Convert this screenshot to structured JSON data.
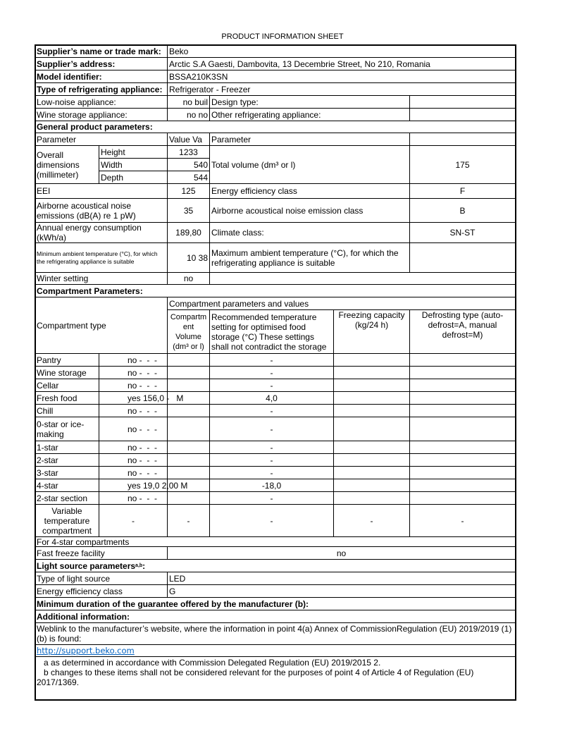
{
  "title": "PRODUCT INFORMATION SHEET",
  "supplier": {
    "label": "Supplier’s name or trade mark:",
    "value": "Beko"
  },
  "address": {
    "label": "Supplier’s address:",
    "value": "Arctic S.A  Gaesti, Dambovita, 13 Decembrie Street, No 210, Romania"
  },
  "model": {
    "label": "Model identifier:",
    "value": "BSSA210K3SN"
  },
  "appliance_type": {
    "label": "Type of refrigerating appliance:",
    "value": "Refrigerator - Freezer"
  },
  "low_noise": {
    "label": "Low-noise appliance:",
    "value": "no buil",
    "design_label": "Design type:"
  },
  "wine": {
    "label": "Wine storage appliance:",
    "value": "no no",
    "other_label": "Other refrigerating appliance:"
  },
  "general": {
    "heading": "General product parameters:",
    "header": {
      "parameter": "Parameter",
      "value": "Value    Va",
      "parameter2": "Parameter"
    },
    "dimensions": {
      "label": "Overall dimensions (millimeter)",
      "height_label": "Height",
      "height": "1233",
      "width_label": "Width",
      "width": "540",
      "depth_label": "Depth",
      "depth": "544"
    },
    "total_volume": {
      "label": "Total volume (dm³ or l)",
      "value": "175"
    },
    "eei": {
      "label": "EEI",
      "value": "125",
      "class_label": "Energy efficiency class",
      "class": "F"
    },
    "noise": {
      "label": "Airborne acoustical noise emissions (dB(A) re 1 pW)",
      "value": "35",
      "class_label": "Airborne acoustical noise emission class",
      "class": "B"
    },
    "energy": {
      "label": "Annual energy consumption (kWh/a)",
      "value": "189,80",
      "climate_label": "Climate class:",
      "climate": "SN-ST"
    },
    "ambient": {
      "min_label": "Minimum ambient temperature (°C), for which the refrigerating appliance is suitable",
      "value": "10 38",
      "max_label": "Maximum ambient temperature (°C), for which the refrigerating appliance is suitable"
    },
    "winter": {
      "label": "Winter setting",
      "value": "no"
    }
  },
  "compartment": {
    "heading": "Compartment Parameters:",
    "type_header": "Compartment type",
    "group_header": "Compartment parameters and values",
    "volume_header": "Compartm ent Volume (dm³ or l)",
    "temp_header": "Recommended temperature setting for optimised food storage (°C) These settings shall not contradict the storage",
    "freeze_header": "Freezing capacity (kg/24 h)",
    "defrost_header": "Defrosting type (auto-defrost=A, manual defrost=M)",
    "rows": [
      {
        "name": "Pantry",
        "value": "no -  -  -",
        "temp": "-"
      },
      {
        "name": "Wine storage",
        "value": "no -  -  -",
        "temp": "-"
      },
      {
        "name": "Cellar",
        "value": "no -  -  -",
        "temp": "-"
      },
      {
        "name": "Fresh food",
        "value": "yes 156,0 -   M",
        "temp": "4,0"
      },
      {
        "name": "Chill",
        "value": "no -  -  -",
        "temp": "-"
      },
      {
        "name": "0-star or ice-making",
        "value": "no -  -  -",
        "temp": "-"
      },
      {
        "name": "1-star",
        "value": "no -  -  -",
        "temp": "-"
      },
      {
        "name": "2-star",
        "value": "no -  -  -",
        "temp": "-"
      },
      {
        "name": "3-star",
        "value": "no -  -  -",
        "temp": "-"
      },
      {
        "name": "4-star",
        "value": "yes 19,0 2,00 M",
        "temp": "-18,0"
      },
      {
        "name": "2-star section",
        "value": "no -  -  -",
        "temp": "-"
      }
    ],
    "variable": {
      "name": "Variable temperature compartment",
      "value": "-",
      "volume": "-",
      "temp": "-",
      "freeze": "-",
      "defrost": "-"
    },
    "four_star_label": "For 4-star compartments",
    "fast_freeze": {
      "label": "Fast freeze facility",
      "value": "no"
    }
  },
  "light": {
    "heading": "Light source parameters",
    "heading_sup": "a,b",
    "heading_suffix": ":",
    "type_label": "Type of light source",
    "type": "LED",
    "class_label": "Energy efficiency class",
    "class": "G"
  },
  "guarantee": "Minimum duration of the guarantee offered by the manufacturer (b):",
  "additional": {
    "heading": "Additional information:",
    "weblink_text": "Weblink to the manufacturer’s website, where the information in point 4(a) Annex of CommissionRegulation (EU) 2019/2019 (1)(b) is found:",
    "link": "http://support.beko.com",
    "note_a": "   a as determined in accordance with Commission Delegated Regulation (EU) 2019/2015 2.",
    "note_b": "   b changes to these items shall not be considered relevant for the purposes of point 4 of Article 4 of Regulation (EU) 2017/1369."
  }
}
